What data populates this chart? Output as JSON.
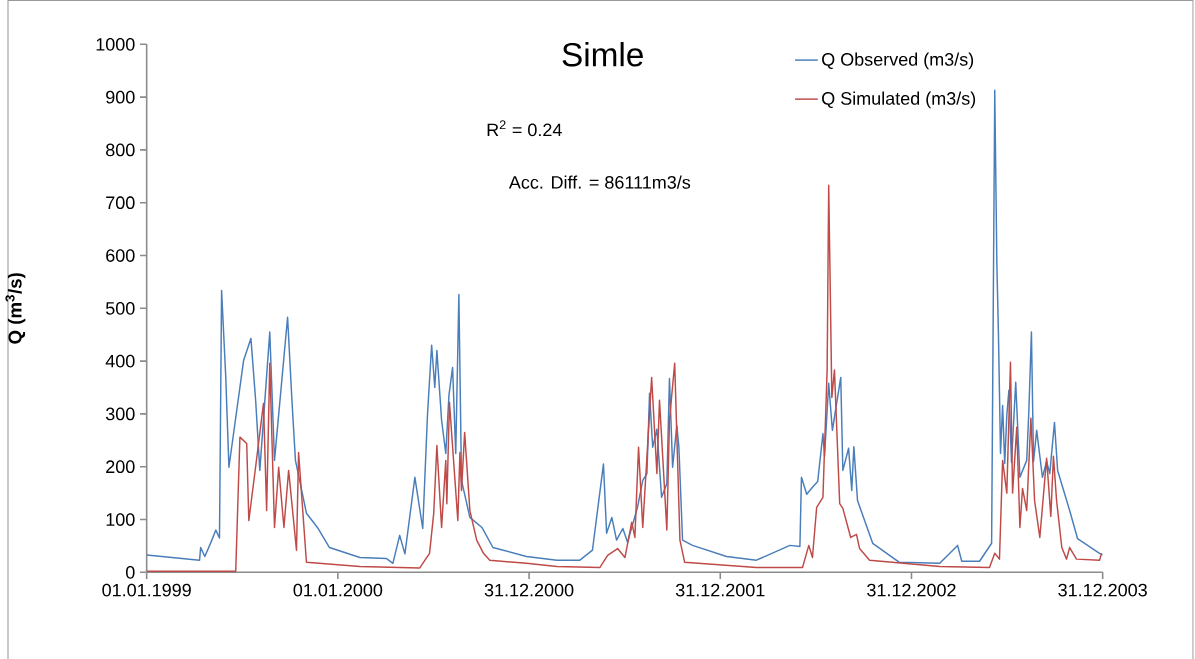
{
  "chart_data": {
    "type": "line",
    "title": "Simle",
    "ylabel": "Q  (m$^{3}$/s)",
    "annotations": [
      "R$^{2}$ = 0.24",
      "Acc. Diff. = 86111m3/s"
    ],
    "xlim": [
      "1999-01-01",
      "2003-12-31"
    ],
    "xticks": [
      {
        "value": "1999-01-01",
        "label": "01.01.1999"
      },
      {
        "value": "2000-01-01",
        "label": "01.01.2000"
      },
      {
        "value": "2000-12-31",
        "label": "31.12.2000"
      },
      {
        "value": "2001-12-31",
        "label": "31.12.2001"
      },
      {
        "value": "2002-12-31",
        "label": "31.12.2002"
      },
      {
        "value": "2003-12-31",
        "label": "31.12.2003"
      }
    ],
    "ylim": [
      0,
      1000
    ],
    "yticks": [
      0,
      100,
      200,
      300,
      400,
      500,
      600,
      700,
      800,
      900,
      1000
    ],
    "legend": "top right",
    "grid": false,
    "marker": "none",
    "line_style": "solid",
    "series": [
      {
        "name": "Q Observed (m3/s)",
        "color": "#4a7ebb",
        "x": [
          "1999-01-01",
          "1999-04-12",
          "1999-04-14",
          "1999-04-22",
          "1999-05-05",
          "1999-05-13",
          "1999-05-20",
          "1999-05-24",
          "1999-06-01",
          "1999-06-07",
          "1999-07-05",
          "1999-07-19",
          "1999-07-28",
          "1999-08-05",
          "1999-08-24",
          "1999-09-02",
          "1999-09-27",
          "1999-10-05",
          "1999-10-12",
          "1999-11-02",
          "1999-11-23",
          "1999-12-16",
          "2000-02-12",
          "2000-04-03",
          "2000-04-15",
          "2000-04-28",
          "2000-05-08",
          "2000-05-27",
          "2000-06-11",
          "2000-06-20",
          "2000-06-28",
          "2000-07-04",
          "2000-07-08",
          "2000-07-17",
          "2000-07-25",
          "2000-07-31",
          "2000-08-07",
          "2000-08-13",
          "2000-08-19",
          "2000-08-24",
          "2000-09-09",
          "2000-10-02",
          "2000-10-23",
          "2000-12-26",
          "2001-02-22",
          "2001-04-07",
          "2001-05-01",
          "2001-05-22",
          "2001-05-28",
          "2001-06-07",
          "2001-06-16",
          "2001-06-28",
          "2001-07-07",
          "2001-07-26",
          "2001-08-05",
          "2001-08-13",
          "2001-08-18",
          "2001-08-24",
          "2001-09-01",
          "2001-09-10",
          "2001-09-20",
          "2001-09-25",
          "2001-10-01",
          "2001-10-09",
          "2001-10-13",
          "2001-10-20",
          "2001-11-08",
          "2002-01-12",
          "2002-03-10",
          "2002-05-13",
          "2002-06-01",
          "2002-06-04",
          "2002-06-14",
          "2002-06-25",
          "2002-07-05",
          "2002-07-15",
          "2002-07-18",
          "2002-07-26",
          "2002-08-02",
          "2002-08-18",
          "2002-08-22",
          "2002-09-02",
          "2002-09-08",
          "2002-09-12",
          "2002-09-19",
          "2002-10-18",
          "2002-12-08",
          "2003-02-23",
          "2003-03-29",
          "2003-04-06",
          "2003-05-10",
          "2003-06-02",
          "2003-06-08",
          "2003-06-12",
          "2003-06-15",
          "2003-06-19",
          "2003-06-23",
          "2003-06-27",
          "2003-07-01",
          "2003-07-05",
          "2003-07-10",
          "2003-07-18",
          "2003-07-26",
          "2003-08-08",
          "2003-08-12",
          "2003-08-17",
          "2003-08-21",
          "2003-08-27",
          "2003-09-07",
          "2003-09-15",
          "2003-09-21",
          "2003-09-30",
          "2003-10-06",
          "2003-10-29",
          "2003-11-13",
          "2003-12-25",
          "2003-12-31"
        ],
        "values": [
          33,
          23,
          47,
          30,
          60,
          80,
          65,
          534,
          369,
          199,
          401,
          443,
          326,
          193,
          455,
          212,
          483,
          331,
          212,
          112,
          85,
          47,
          28,
          26,
          17,
          70,
          35,
          180,
          83,
          297,
          430,
          350,
          420,
          288,
          225,
          335,
          388,
          225,
          526,
          174,
          104,
          85,
          47,
          30,
          23,
          23,
          42,
          205,
          74,
          104,
          61,
          83,
          57,
          123,
          174,
          187,
          339,
          237,
          271,
          142,
          168,
          367,
          199,
          278,
          237,
          61,
          51,
          30,
          23,
          51,
          49,
          180,
          148,
          161,
          172,
          263,
          220,
          358,
          269,
          369,
          193,
          235,
          155,
          238,
          136,
          55,
          19,
          17,
          51,
          21,
          21,
          55,
          913,
          585,
          453,
          225,
          316,
          206,
          297,
          345,
          208,
          360,
          180,
          212,
          303,
          455,
          210,
          269,
          180,
          210,
          187,
          284,
          193,
          117,
          64,
          36,
          33
        ]
      },
      {
        "name": "Q Simulated (m3/s)",
        "color": "#be4b48",
        "x": [
          "1999-01-01",
          "1999-06-20",
          "1999-06-28",
          "1999-07-11",
          "1999-07-15",
          "1999-07-28",
          "1999-08-12",
          "1999-08-18",
          "1999-08-24",
          "1999-09-02",
          "1999-09-10",
          "1999-09-20",
          "1999-09-29",
          "1999-10-14",
          "1999-10-18",
          "1999-11-02",
          "2000-02-12",
          "2000-06-05",
          "2000-06-24",
          "2000-07-02",
          "2000-07-08",
          "2000-07-17",
          "2000-07-25",
          "2000-07-27",
          "2000-08-01",
          "2000-08-17",
          "2000-08-21",
          "2000-08-24",
          "2000-08-30",
          "2000-09-09",
          "2000-09-22",
          "2000-10-05",
          "2000-10-17",
          "2000-12-26",
          "2001-02-22",
          "2001-05-15",
          "2001-05-30",
          "2001-06-18",
          "2001-07-02",
          "2001-07-15",
          "2001-07-21",
          "2001-07-28",
          "2001-08-05",
          "2001-08-22",
          "2001-09-01",
          "2001-09-06",
          "2001-09-20",
          "2001-09-25",
          "2001-10-05",
          "2001-10-15",
          "2001-10-24",
          "2002-03-10",
          "2002-06-06",
          "2002-06-18",
          "2002-06-25",
          "2002-07-03",
          "2002-07-15",
          "2002-07-23",
          "2002-07-26",
          "2002-08-01",
          "2002-08-06",
          "2002-08-16",
          "2002-08-22",
          "2002-09-06",
          "2002-09-17",
          "2002-09-23",
          "2002-10-12",
          "2003-02-23",
          "2003-05-29",
          "2003-06-08",
          "2003-06-17",
          "2003-06-23",
          "2003-07-01",
          "2003-07-08",
          "2003-07-12",
          "2003-07-20",
          "2003-07-26",
          "2003-07-31",
          "2003-08-08",
          "2003-08-16",
          "2003-08-23",
          "2003-09-02",
          "2003-09-15",
          "2003-09-23",
          "2003-09-28",
          "2003-10-04",
          "2003-10-14",
          "2003-10-23",
          "2003-10-29",
          "2003-11-11",
          "2003-12-25",
          "2003-12-29"
        ],
        "values": [
          2,
          2,
          256,
          244,
          98,
          200,
          320,
          117,
          396,
          85,
          199,
          85,
          193,
          42,
          227,
          19,
          11,
          8,
          36,
          112,
          240,
          85,
          212,
          130,
          322,
          98,
          227,
          155,
          265,
          117,
          61,
          36,
          23,
          17,
          11,
          9,
          32,
          45,
          28,
          95,
          66,
          237,
          85,
          369,
          187,
          326,
          80,
          288,
          396,
          61,
          19,
          9,
          9,
          51,
          28,
          123,
          142,
          383,
          733,
          331,
          383,
          130,
          121,
          66,
          72,
          45,
          23,
          11,
          9,
          36,
          25,
          212,
          150,
          398,
          150,
          275,
          85,
          159,
          117,
          292,
          136,
          66,
          216,
          106,
          220,
          136,
          47,
          25,
          47,
          25,
          23,
          36
        ]
      }
    ]
  }
}
